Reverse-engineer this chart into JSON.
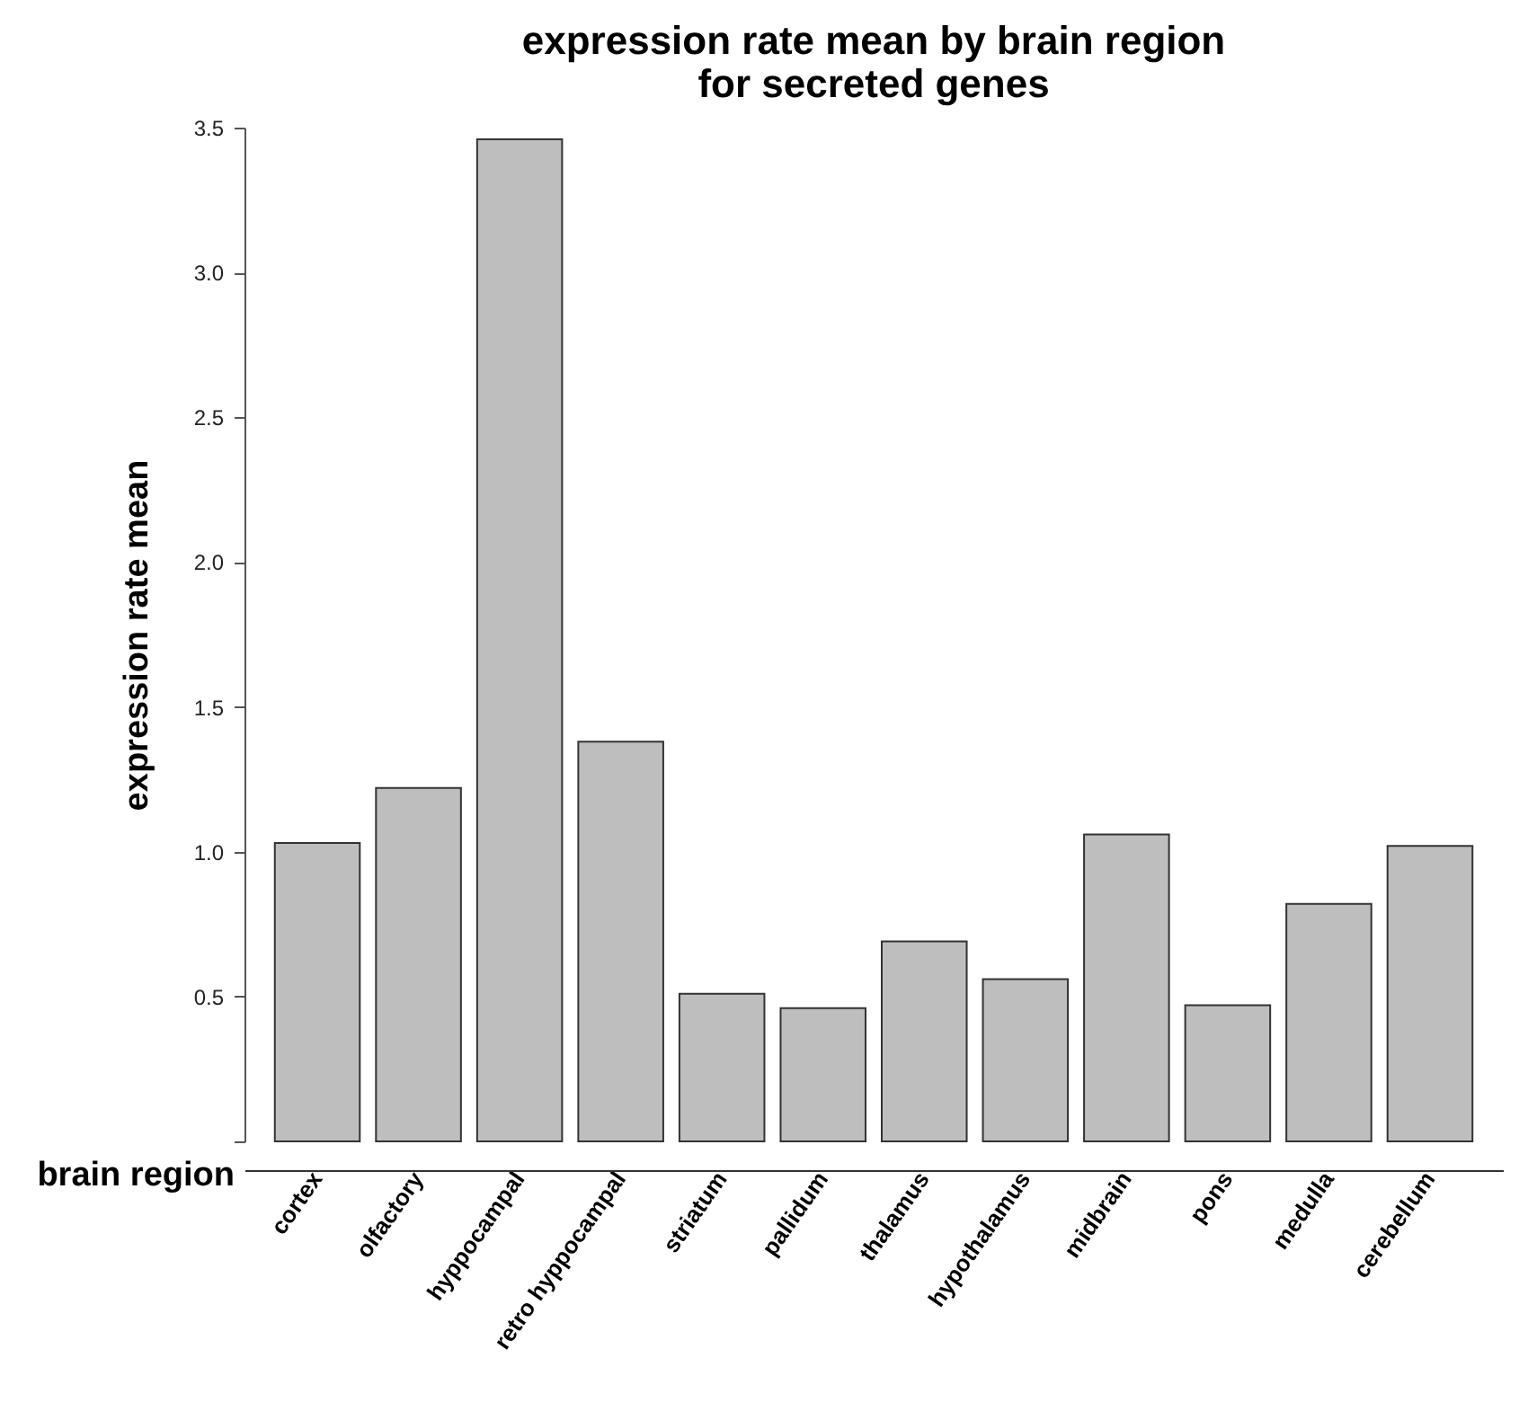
{
  "chart_data": {
    "type": "bar",
    "title": [
      "expression rate mean by brain region",
      "for secreted genes"
    ],
    "xlabel": "brain region",
    "ylabel": "expression rate mean",
    "categories": [
      "cortex",
      "olfactory",
      "hyppocampal",
      "retro hyppocampal",
      "striatum",
      "pallidum",
      "thalamus",
      "hypothalamus",
      "midbrain",
      "pons",
      "medulla",
      "cerebellum"
    ],
    "values": [
      1.03,
      1.22,
      3.46,
      1.38,
      0.51,
      0.46,
      0.69,
      0.56,
      1.06,
      0.47,
      0.82,
      1.02
    ],
    "color": "#bebebe",
    "ylim": [
      0,
      3.5
    ],
    "yticks": [
      {
        "value": 0,
        "label": null
      },
      0.5,
      {
        "value": 1,
        "label": "1.0"
      },
      1.5,
      {
        "value": 2,
        "label": "2.0"
      },
      2.5,
      {
        "value": 3,
        "label": "3.0"
      },
      3.5
    ],
    "grid": false
  }
}
